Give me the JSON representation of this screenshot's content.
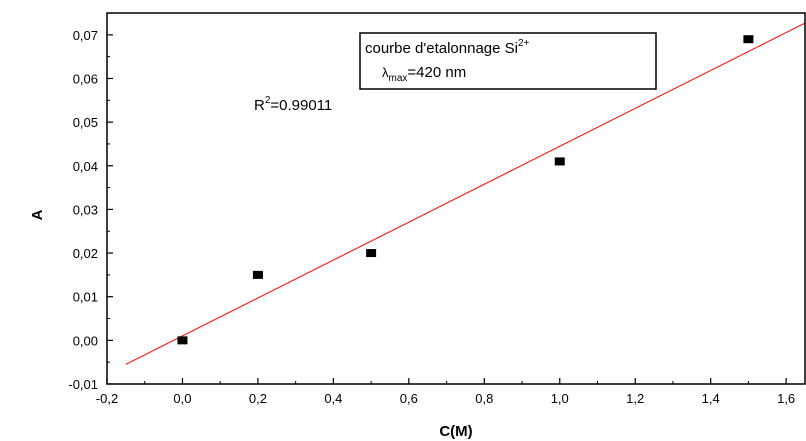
{
  "chart_data": {
    "type": "scatter",
    "xlabel": "C(M)",
    "ylabel": "A",
    "xlim": [
      -0.2,
      1.65
    ],
    "ylim": [
      -0.01,
      0.075
    ],
    "x_ticks": [
      "-0,2",
      "0,0",
      "0,2",
      "0,4",
      "0,6",
      "0,8",
      "1,0",
      "1,2",
      "1,4",
      "1,6"
    ],
    "y_ticks": [
      "-0,01",
      "0,00",
      "0,01",
      "0,02",
      "0,03",
      "0,04",
      "0,05",
      "0,06",
      "0,07"
    ],
    "x_tick_values": [
      -0.2,
      0.0,
      0.2,
      0.4,
      0.6,
      0.8,
      1.0,
      1.2,
      1.4,
      1.6
    ],
    "y_tick_values": [
      -0.01,
      0.0,
      0.01,
      0.02,
      0.03,
      0.04,
      0.05,
      0.06,
      0.07
    ],
    "series": [
      {
        "x": [
          0.0,
          0.2,
          0.5,
          1.0,
          1.5
        ],
        "y": [
          0.0,
          0.015,
          0.02,
          0.041,
          0.069
        ],
        "marker": "square",
        "color": "#000000"
      }
    ],
    "fit_line": {
      "x": [
        -0.15,
        1.65
      ],
      "y": [
        -0.0055,
        0.0727
      ],
      "color": "#ff0000"
    },
    "annotations": {
      "legend_line1": "courbe d'etalonnage Si",
      "legend_sup": "2+",
      "legend_lambda": "λ",
      "legend_sub": "max",
      "legend_value": "=420 nm",
      "r2_prefix": "R",
      "r2_sup": "2",
      "r2_value": "=0.99011"
    },
    "grid": false
  }
}
